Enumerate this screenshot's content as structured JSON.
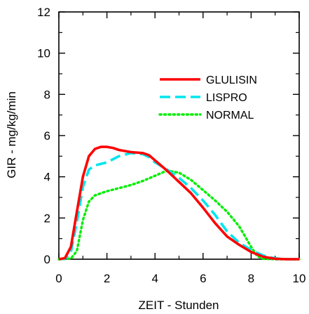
{
  "chart_data": {
    "type": "line",
    "xlabel": "ZEIT - Stunden",
    "ylabel": "GIR - mg/kg/min",
    "xlim": [
      0,
      10
    ],
    "ylim": [
      0,
      12
    ],
    "x_ticks": [
      "0",
      "2",
      "4",
      "6",
      "8",
      "10"
    ],
    "y_ticks": [
      "0",
      "2",
      "4",
      "6",
      "8",
      "10",
      "12"
    ],
    "grid": false,
    "legend_position": "upper-right",
    "series": [
      {
        "name": "GLULISIN",
        "color": "#ff0000",
        "style": "solid",
        "points": [
          [
            0.0,
            0.0
          ],
          [
            0.25,
            0.05
          ],
          [
            0.5,
            0.6
          ],
          [
            0.75,
            2.3
          ],
          [
            1.0,
            4.0
          ],
          [
            1.25,
            5.0
          ],
          [
            1.5,
            5.35
          ],
          [
            1.75,
            5.45
          ],
          [
            2.0,
            5.45
          ],
          [
            2.25,
            5.4
          ],
          [
            2.5,
            5.3
          ],
          [
            3.0,
            5.2
          ],
          [
            3.5,
            5.15
          ],
          [
            3.75,
            5.05
          ],
          [
            4.0,
            4.8
          ],
          [
            4.5,
            4.3
          ],
          [
            5.0,
            3.75
          ],
          [
            5.5,
            3.2
          ],
          [
            6.0,
            2.5
          ],
          [
            6.5,
            1.75
          ],
          [
            7.0,
            1.1
          ],
          [
            7.5,
            0.7
          ],
          [
            8.0,
            0.35
          ],
          [
            8.5,
            0.12
          ],
          [
            9.0,
            0.02
          ],
          [
            9.5,
            0.0
          ],
          [
            10.0,
            0.0
          ]
        ]
      },
      {
        "name": "LISPRO",
        "color": "#00e5ee",
        "style": "dashed",
        "points": [
          [
            0.0,
            0.0
          ],
          [
            0.25,
            0.02
          ],
          [
            0.5,
            0.35
          ],
          [
            0.75,
            1.8
          ],
          [
            1.0,
            3.5
          ],
          [
            1.25,
            4.35
          ],
          [
            1.5,
            4.55
          ],
          [
            2.0,
            4.7
          ],
          [
            2.5,
            5.0
          ],
          [
            3.0,
            5.15
          ],
          [
            3.5,
            5.1
          ],
          [
            3.75,
            4.95
          ],
          [
            4.0,
            4.7
          ],
          [
            4.5,
            4.35
          ],
          [
            5.0,
            3.95
          ],
          [
            5.5,
            3.45
          ],
          [
            6.0,
            2.85
          ],
          [
            6.5,
            2.15
          ],
          [
            7.0,
            1.35
          ],
          [
            7.5,
            0.8
          ],
          [
            8.0,
            0.45
          ],
          [
            8.5,
            0.18
          ],
          [
            9.0,
            0.04
          ],
          [
            9.5,
            0.0
          ],
          [
            10.0,
            0.0
          ]
        ]
      },
      {
        "name": "NORMAL",
        "color": "#00ee00",
        "style": "dotted",
        "points": [
          [
            0.0,
            0.0
          ],
          [
            0.5,
            0.03
          ],
          [
            0.75,
            0.4
          ],
          [
            1.0,
            1.9
          ],
          [
            1.25,
            2.8
          ],
          [
            1.5,
            3.1
          ],
          [
            2.0,
            3.3
          ],
          [
            2.5,
            3.45
          ],
          [
            3.0,
            3.6
          ],
          [
            3.5,
            3.8
          ],
          [
            4.0,
            4.05
          ],
          [
            4.5,
            4.3
          ],
          [
            5.0,
            4.2
          ],
          [
            5.5,
            3.85
          ],
          [
            6.0,
            3.35
          ],
          [
            6.5,
            2.85
          ],
          [
            7.0,
            2.3
          ],
          [
            7.5,
            1.6
          ],
          [
            8.0,
            0.6
          ],
          [
            8.25,
            0.15
          ],
          [
            8.5,
            0.02
          ],
          [
            9.0,
            0.0
          ],
          [
            10.0,
            0.0
          ]
        ]
      }
    ]
  }
}
